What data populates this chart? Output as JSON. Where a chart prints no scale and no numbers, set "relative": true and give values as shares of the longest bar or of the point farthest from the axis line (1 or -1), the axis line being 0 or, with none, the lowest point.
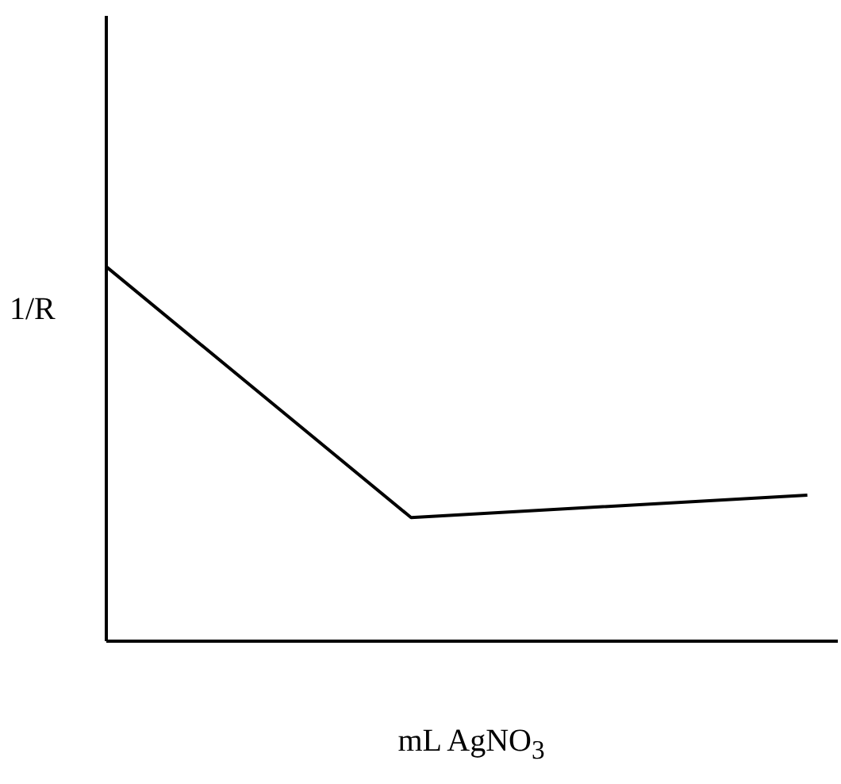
{
  "chart_data": {
    "type": "line",
    "relative": true,
    "xlabel": "mL AgNO$_{3}$",
    "ylabel": "1/R",
    "categories": [
      null,
      null,
      null,
      null,
      null,
      null,
      null,
      null,
      null,
      null,
      null,
      null,
      null,
      null,
      null,
      null,
      null,
      null,
      null,
      null,
      null,
      null,
      null,
      null,
      null
    ],
    "series": [
      {
        "color": "#000000",
        "values": [
          1,
          null,
          null,
          null,
          null,
          null,
          null,
          null,
          null,
          null,
          0.33,
          null,
          null,
          null,
          null,
          null,
          null,
          null,
          null,
          null,
          null,
          null,
          null,
          0.39,
          null
        ]
      }
    ],
    "marker": "none",
    "line_style": "solid",
    "grid": false
  }
}
